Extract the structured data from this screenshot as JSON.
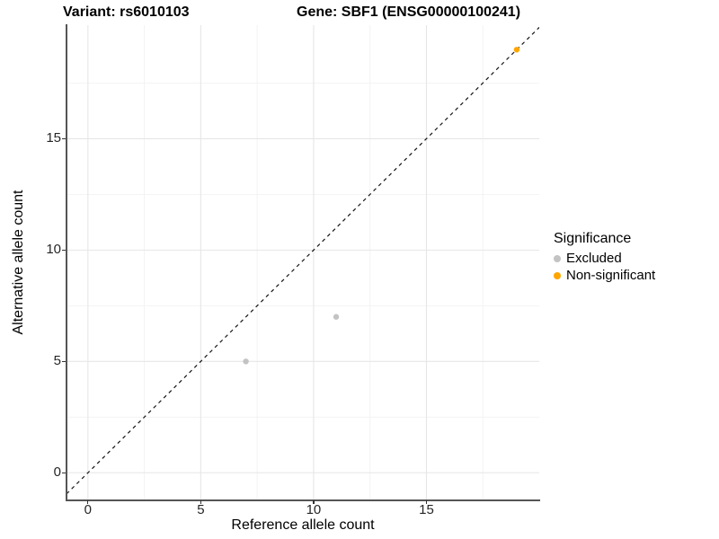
{
  "figure": {
    "title_left": "Variant: rs6010103",
    "title_right": "Gene: SBF1 (ENSG00000100241)"
  },
  "chart_data": {
    "type": "scatter",
    "xlabel": "Reference allele count",
    "ylabel": "Alternative allele count",
    "xlim": [
      -0.95,
      20.0
    ],
    "ylim": [
      -1.2,
      20.1
    ],
    "xticks": [
      0,
      5,
      10,
      15
    ],
    "yticks": [
      0,
      5,
      10,
      15
    ],
    "xticks_minor": [
      2.5,
      7.5,
      12.5,
      17.5
    ],
    "yticks_minor": [
      2.5,
      7.5,
      12.5,
      17.5
    ],
    "grid": "major+minor",
    "legend_title": "Significance",
    "legend_position": "right",
    "series": [
      {
        "name": "Excluded",
        "color": "#c3c3c3",
        "points": [
          [
            7,
            5
          ],
          [
            11,
            7
          ]
        ]
      },
      {
        "name": "Non-significant",
        "color": "#ffa500",
        "points": [
          [
            19,
            19
          ]
        ]
      }
    ],
    "identity_line": {
      "style": "dashed",
      "color": "#141414",
      "slope": 1,
      "intercept": 0
    }
  },
  "style": {
    "grid_major": "#e6e6e6",
    "grid_minor": "#f2f2f2",
    "axis_line": "#555555",
    "tick_color": "#333333",
    "point_radius": 3.2
  }
}
